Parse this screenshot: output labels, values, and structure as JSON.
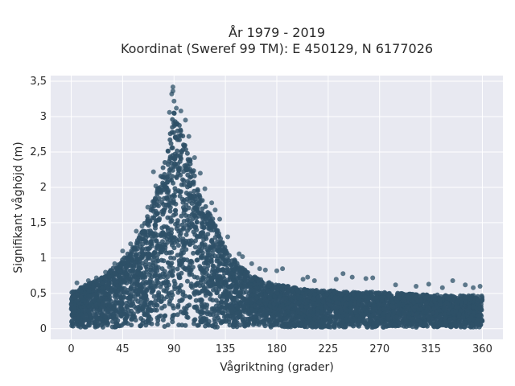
{
  "chart_data": {
    "type": "scatter",
    "title_line1": "År 1979 - 2019",
    "title_line2": "Koordinat (Sweref 99 TM): E 450129, N 6177026",
    "xlabel": "Vågriktning (grader)",
    "ylabel": "Signifikant våghöjd (m)",
    "xlim": [
      -18,
      378
    ],
    "ylim": [
      -0.15,
      3.58
    ],
    "x_ticks": [
      0,
      45,
      90,
      135,
      180,
      225,
      270,
      315,
      360
    ],
    "x_tick_labels": [
      "0",
      "45",
      "90",
      "135",
      "180",
      "225",
      "270",
      "315",
      "360"
    ],
    "y_ticks": [
      0,
      0.5,
      1,
      1.5,
      2,
      2.5,
      3,
      3.5
    ],
    "y_tick_labels": [
      "0",
      "0,5",
      "1",
      "1,5",
      "2",
      "2,5",
      "3",
      "3,5"
    ],
    "grid": true,
    "colors": {
      "marker": "#2e5067",
      "plot_background": "#e8e9f1",
      "grid": "#ffffff"
    },
    "envelope": {
      "x": [
        0,
        10,
        20,
        30,
        40,
        50,
        55,
        60,
        65,
        70,
        75,
        80,
        85,
        88,
        90,
        92,
        95,
        100,
        105,
        110,
        115,
        120,
        125,
        130,
        135,
        140,
        150,
        160,
        170,
        180,
        190,
        200,
        210,
        220,
        230,
        240,
        250,
        260,
        270,
        280,
        290,
        300,
        310,
        320,
        330,
        340,
        350,
        360
      ],
      "y": [
        0.5,
        0.58,
        0.65,
        0.75,
        0.9,
        1.05,
        1.18,
        1.3,
        1.5,
        1.72,
        1.95,
        2.25,
        2.6,
        2.95,
        3.05,
        2.98,
        2.85,
        2.6,
        2.35,
        2.05,
        1.85,
        1.65,
        1.5,
        1.32,
        1.15,
        1.0,
        0.85,
        0.72,
        0.65,
        0.6,
        0.58,
        0.55,
        0.53,
        0.52,
        0.52,
        0.5,
        0.5,
        0.5,
        0.5,
        0.49,
        0.48,
        0.47,
        0.46,
        0.46,
        0.45,
        0.45,
        0.45,
        0.45
      ]
    },
    "outliers": [
      {
        "x": 89,
        "y": 3.42
      },
      {
        "x": 89,
        "y": 3.36
      },
      {
        "x": 88,
        "y": 3.32
      },
      {
        "x": 90,
        "y": 3.22
      },
      {
        "x": 92,
        "y": 3.12
      },
      {
        "x": 86,
        "y": 3.06
      },
      {
        "x": 96,
        "y": 3.08
      },
      {
        "x": 100,
        "y": 2.95
      },
      {
        "x": 103,
        "y": 2.72
      },
      {
        "x": 108,
        "y": 2.42
      },
      {
        "x": 113,
        "y": 2.2
      },
      {
        "x": 117,
        "y": 1.98
      },
      {
        "x": 123,
        "y": 1.78
      },
      {
        "x": 126,
        "y": 1.68
      },
      {
        "x": 130,
        "y": 1.55
      },
      {
        "x": 137,
        "y": 1.3
      },
      {
        "x": 147,
        "y": 1.06
      },
      {
        "x": 150,
        "y": 1.02
      },
      {
        "x": 158,
        "y": 0.92
      },
      {
        "x": 165,
        "y": 0.85
      },
      {
        "x": 170,
        "y": 0.83
      },
      {
        "x": 180,
        "y": 0.82
      },
      {
        "x": 185,
        "y": 0.85
      },
      {
        "x": 203,
        "y": 0.7
      },
      {
        "x": 207,
        "y": 0.73
      },
      {
        "x": 213,
        "y": 0.68
      },
      {
        "x": 232,
        "y": 0.7
      },
      {
        "x": 238,
        "y": 0.78
      },
      {
        "x": 246,
        "y": 0.73
      },
      {
        "x": 258,
        "y": 0.71
      },
      {
        "x": 264,
        "y": 0.72
      },
      {
        "x": 284,
        "y": 0.62
      },
      {
        "x": 302,
        "y": 0.6
      },
      {
        "x": 313,
        "y": 0.63
      },
      {
        "x": 325,
        "y": 0.58
      },
      {
        "x": 334,
        "y": 0.68
      },
      {
        "x": 345,
        "y": 0.62
      },
      {
        "x": 352,
        "y": 0.58
      },
      {
        "x": 358,
        "y": 0.6
      },
      {
        "x": 72,
        "y": 2.22
      },
      {
        "x": 74,
        "y": 2.02
      },
      {
        "x": 67,
        "y": 1.72
      },
      {
        "x": 62,
        "y": 1.45
      },
      {
        "x": 57,
        "y": 1.38
      },
      {
        "x": 52,
        "y": 1.2
      },
      {
        "x": 45,
        "y": 1.1
      },
      {
        "x": 38,
        "y": 0.92
      },
      {
        "x": 30,
        "y": 0.8
      },
      {
        "x": 22,
        "y": 0.72
      },
      {
        "x": 15,
        "y": 0.68
      },
      {
        "x": 5,
        "y": 0.65
      }
    ]
  }
}
